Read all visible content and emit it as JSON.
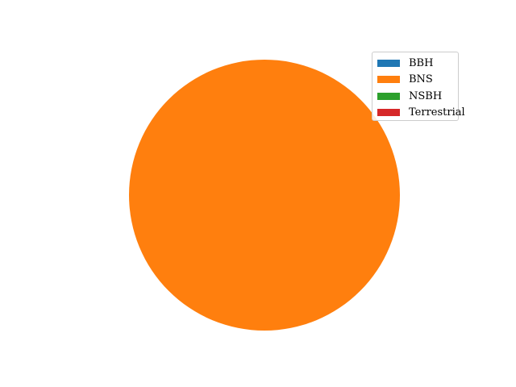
{
  "chart_data": {
    "type": "pie",
    "title": "",
    "slices": [
      {
        "label": "BBH",
        "value": 0,
        "color": "#1f77b4"
      },
      {
        "label": "BNS",
        "value": 100,
        "color": "#ff7f0e"
      },
      {
        "label": "NSBH",
        "value": 0,
        "color": "#2ca02c"
      },
      {
        "label": "Terrestrial",
        "value": 0,
        "color": "#d62728"
      }
    ],
    "legend_position": "top-right"
  }
}
